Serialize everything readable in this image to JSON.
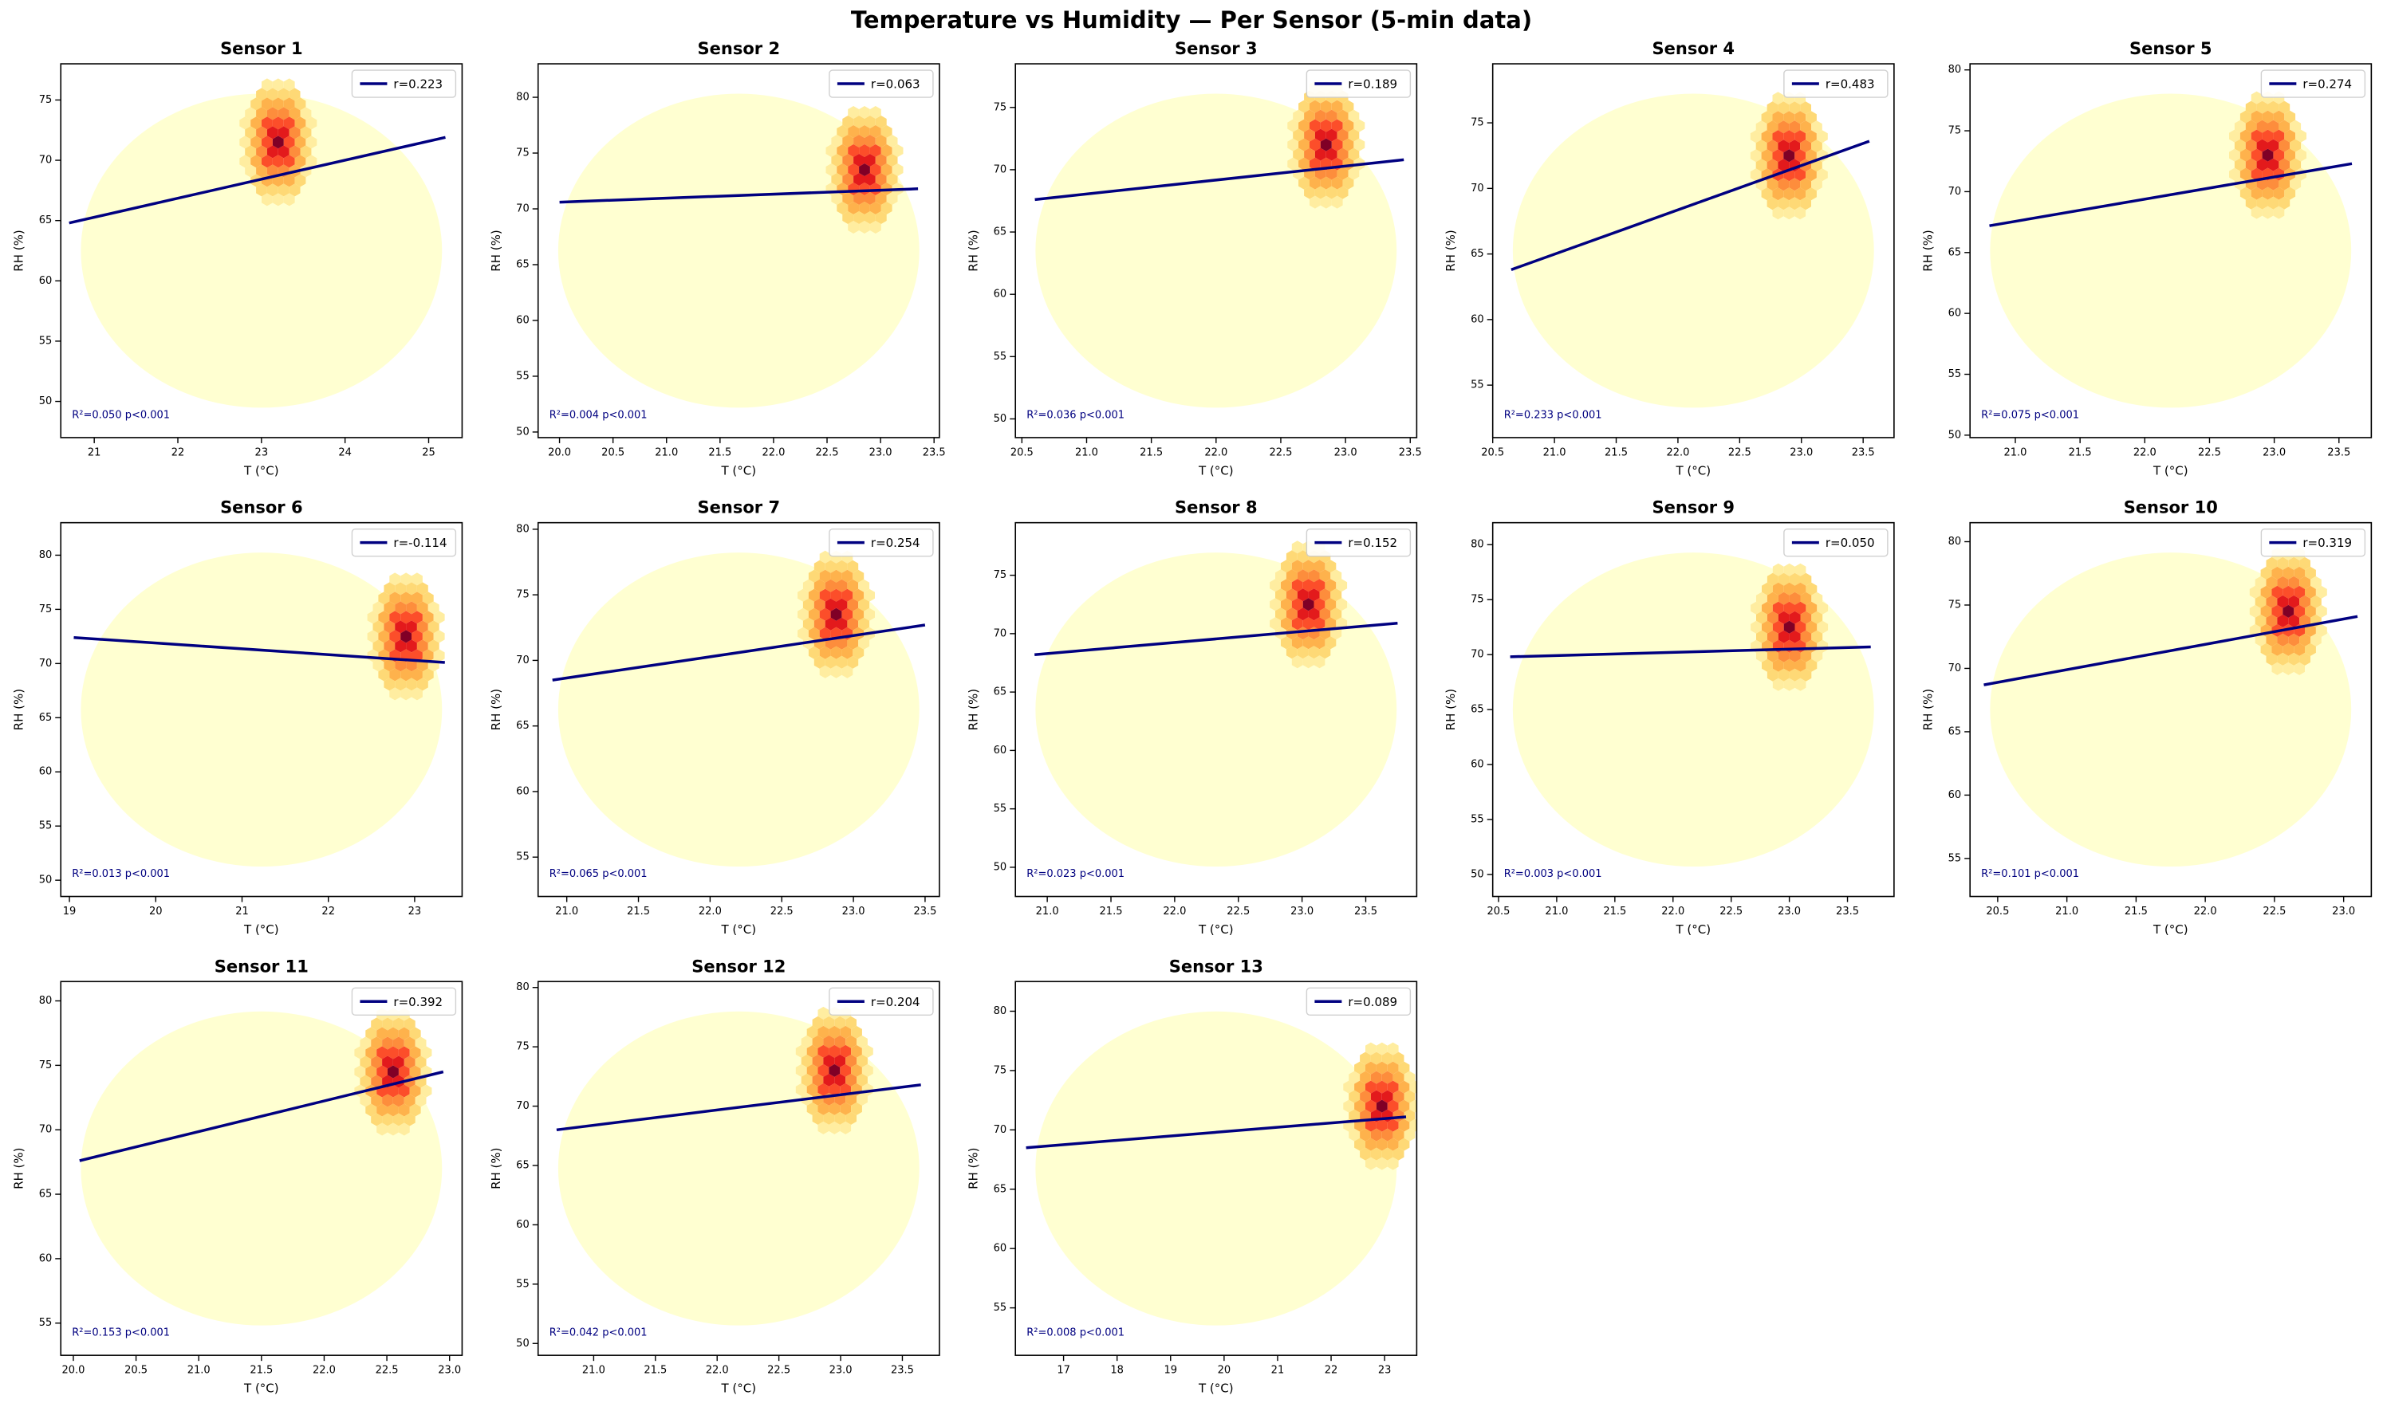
{
  "title": "Temperature vs Humidity — Per Sensor (5-min data)",
  "chart_data": [
    {
      "type": "hexbin",
      "title": "Sensor 1",
      "xlabel": "T (°C)",
      "ylabel": "RH (%)",
      "annotation": "R²=0.050  p<0.001",
      "xlim": [
        20.6,
        25.4
      ],
      "ylim": [
        47,
        78
      ],
      "xticks": [
        21,
        22,
        23,
        24,
        25
      ],
      "yticks": [
        50,
        55,
        60,
        65,
        70,
        75
      ],
      "fit": {
        "name": "r=0.223",
        "color": "#000080",
        "x": [
          20.7,
          25.2
        ],
        "y": [
          64.8,
          71.9
        ]
      },
      "peak": {
        "x": 23.2,
        "y": 71.5
      }
    },
    {
      "type": "hexbin",
      "title": "Sensor 2",
      "xlabel": "T (°C)",
      "ylabel": "RH (%)",
      "annotation": "R²=0.004  p<0.001",
      "xlim": [
        19.8,
        23.55
      ],
      "ylim": [
        49.5,
        83
      ],
      "xticks": [
        {
          "value": 20,
          "label": "20.0"
        },
        20.5,
        {
          "value": 21,
          "label": "21.0"
        },
        21.5,
        {
          "value": 22,
          "label": "22.0"
        },
        22.5,
        {
          "value": 23,
          "label": "23.0"
        },
        23.5
      ],
      "yticks": [
        50,
        55,
        60,
        65,
        70,
        75,
        80
      ],
      "fit": {
        "name": "r=0.063",
        "color": "#000080",
        "x": [
          20.0,
          23.35
        ],
        "y": [
          70.6,
          71.8
        ]
      },
      "peak": {
        "x": 22.85,
        "y": 73.5
      }
    },
    {
      "type": "hexbin",
      "title": "Sensor 3",
      "xlabel": "T (°C)",
      "ylabel": "RH (%)",
      "annotation": "R²=0.036  p<0.001",
      "xlim": [
        20.45,
        23.55
      ],
      "ylim": [
        48.5,
        78.5
      ],
      "xticks": [
        20.5,
        {
          "value": 21,
          "label": "21.0"
        },
        21.5,
        {
          "value": 22,
          "label": "22.0"
        },
        22.5,
        {
          "value": 23,
          "label": "23.0"
        },
        23.5
      ],
      "yticks": [
        50,
        55,
        60,
        65,
        70,
        75
      ],
      "fit": {
        "name": "r=0.189",
        "color": "#000080",
        "x": [
          20.6,
          23.45
        ],
        "y": [
          67.6,
          70.8
        ]
      },
      "peak": {
        "x": 22.85,
        "y": 72
      }
    },
    {
      "type": "hexbin",
      "title": "Sensor 4",
      "xlabel": "T (°C)",
      "ylabel": "RH (%)",
      "annotation": "R²=0.233  p<0.001",
      "xlim": [
        20.5,
        23.75
      ],
      "ylim": [
        51,
        79.5
      ],
      "xticks": [
        20.5,
        {
          "value": 21,
          "label": "21.0"
        },
        21.5,
        {
          "value": 22,
          "label": "22.0"
        },
        22.5,
        {
          "value": 23,
          "label": "23.0"
        },
        23.5
      ],
      "yticks": [
        55,
        60,
        65,
        70,
        75
      ],
      "fit": {
        "name": "r=0.483",
        "color": "#000080",
        "x": [
          20.65,
          23.55
        ],
        "y": [
          63.8,
          73.6
        ]
      },
      "peak": {
        "x": 22.9,
        "y": 72.5
      }
    },
    {
      "type": "hexbin",
      "title": "Sensor 5",
      "xlabel": "T (°C)",
      "ylabel": "RH (%)",
      "annotation": "R²=0.075  p<0.001",
      "xlim": [
        20.65,
        23.75
      ],
      "ylim": [
        49.8,
        80.5
      ],
      "xticks": [
        {
          "value": 21,
          "label": "21.0"
        },
        21.5,
        {
          "value": 22,
          "label": "22.0"
        },
        22.5,
        {
          "value": 23,
          "label": "23.0"
        },
        23.5
      ],
      "yticks": [
        50,
        55,
        60,
        65,
        70,
        75,
        80
      ],
      "fit": {
        "name": "r=0.274",
        "color": "#000080",
        "x": [
          20.8,
          23.6
        ],
        "y": [
          67.2,
          72.3
        ]
      },
      "peak": {
        "x": 22.95,
        "y": 73
      }
    },
    {
      "type": "hexbin",
      "title": "Sensor 6",
      "xlabel": "T (°C)",
      "ylabel": "RH (%)",
      "annotation": "R²=0.013  p<0.001",
      "xlim": [
        18.9,
        23.55
      ],
      "ylim": [
        48.5,
        83
      ],
      "xticks": [
        19,
        20,
        21,
        22,
        23
      ],
      "yticks": [
        50,
        55,
        60,
        65,
        70,
        75,
        80
      ],
      "fit": {
        "name": "r=-0.114",
        "color": "#000080",
        "x": [
          19.05,
          23.35
        ],
        "y": [
          72.4,
          70.1
        ]
      },
      "peak": {
        "x": 22.9,
        "y": 72.5
      }
    },
    {
      "type": "hexbin",
      "title": "Sensor 7",
      "xlabel": "T (°C)",
      "ylabel": "RH (%)",
      "annotation": "R²=0.065  p<0.001",
      "xlim": [
        20.8,
        23.6
      ],
      "ylim": [
        52,
        80.5
      ],
      "xticks": [
        {
          "value": 21,
          "label": "21.0"
        },
        21.5,
        {
          "value": 22,
          "label": "22.0"
        },
        22.5,
        {
          "value": 23,
          "label": "23.0"
        },
        23.5
      ],
      "yticks": [
        55,
        60,
        65,
        70,
        75,
        80
      ],
      "fit": {
        "name": "r=0.254",
        "color": "#000080",
        "x": [
          20.9,
          23.5
        ],
        "y": [
          68.5,
          72.7
        ]
      },
      "peak": {
        "x": 22.88,
        "y": 73.5
      }
    },
    {
      "type": "hexbin",
      "title": "Sensor 8",
      "xlabel": "T (°C)",
      "ylabel": "RH (%)",
      "annotation": "R²=0.023  p<0.001",
      "xlim": [
        20.75,
        23.9
      ],
      "ylim": [
        47.5,
        79.5
      ],
      "xticks": [
        {
          "value": 21,
          "label": "21.0"
        },
        21.5,
        {
          "value": 22,
          "label": "22.0"
        },
        22.5,
        {
          "value": 23,
          "label": "23.0"
        },
        23.5
      ],
      "yticks": [
        50,
        55,
        60,
        65,
        70,
        75
      ],
      "fit": {
        "name": "r=0.152",
        "color": "#000080",
        "x": [
          20.9,
          23.75
        ],
        "y": [
          68.2,
          70.9
        ]
      },
      "peak": {
        "x": 23.05,
        "y": 72.5
      }
    },
    {
      "type": "hexbin",
      "title": "Sensor 9",
      "xlabel": "T (°C)",
      "ylabel": "RH (%)",
      "annotation": "R²=0.003  p<0.001",
      "xlim": [
        20.45,
        23.9
      ],
      "ylim": [
        48,
        82
      ],
      "xticks": [
        20.5,
        {
          "value": 21,
          "label": "21.0"
        },
        21.5,
        {
          "value": 22,
          "label": "22.0"
        },
        22.5,
        {
          "value": 23,
          "label": "23.0"
        },
        23.5
      ],
      "yticks": [
        50,
        55,
        60,
        65,
        70,
        75,
        80
      ],
      "fit": {
        "name": "r=0.050",
        "color": "#000080",
        "x": [
          20.6,
          23.7
        ],
        "y": [
          69.8,
          70.7
        ]
      },
      "peak": {
        "x": 23.0,
        "y": 72.5
      }
    },
    {
      "type": "hexbin",
      "title": "Sensor 10",
      "xlabel": "T (°C)",
      "ylabel": "RH (%)",
      "annotation": "R²=0.101  p<0.001",
      "xlim": [
        20.3,
        23.2
      ],
      "ylim": [
        52,
        81.5
      ],
      "xticks": [
        20.5,
        {
          "value": 21,
          "label": "21.0"
        },
        21.5,
        {
          "value": 22,
          "label": "22.0"
        },
        22.5,
        {
          "value": 23,
          "label": "23.0"
        }
      ],
      "yticks": [
        55,
        60,
        65,
        70,
        75,
        80
      ],
      "fit": {
        "name": "r=0.319",
        "color": "#000080",
        "x": [
          20.4,
          23.1
        ],
        "y": [
          68.7,
          74.1
        ]
      },
      "peak": {
        "x": 22.6,
        "y": 74.5
      }
    },
    {
      "type": "hexbin",
      "title": "Sensor 11",
      "xlabel": "T (°C)",
      "ylabel": "RH (%)",
      "annotation": "R²=0.153  p<0.001",
      "xlim": [
        19.9,
        23.1
      ],
      "ylim": [
        52.5,
        81.5
      ],
      "xticks": [
        {
          "value": 20,
          "label": "20.0"
        },
        20.5,
        {
          "value": 21,
          "label": "21.0"
        },
        21.5,
        {
          "value": 22,
          "label": "22.0"
        },
        22.5,
        {
          "value": 23,
          "label": "23.0"
        }
      ],
      "yticks": [
        55,
        60,
        65,
        70,
        75,
        80
      ],
      "fit": {
        "name": "r=0.392",
        "color": "#000080",
        "x": [
          20.05,
          22.95
        ],
        "y": [
          67.6,
          74.5
        ]
      },
      "peak": {
        "x": 22.55,
        "y": 74.5
      }
    },
    {
      "type": "hexbin",
      "title": "Sensor 12",
      "xlabel": "T (°C)",
      "ylabel": "RH (%)",
      "annotation": "R²=0.042  p<0.001",
      "xlim": [
        20.55,
        23.8
      ],
      "ylim": [
        49,
        80.5
      ],
      "xticks": [
        {
          "value": 21,
          "label": "21.0"
        },
        21.5,
        {
          "value": 22,
          "label": "22.0"
        },
        22.5,
        {
          "value": 23,
          "label": "23.0"
        },
        23.5
      ],
      "yticks": [
        50,
        55,
        60,
        65,
        70,
        75,
        80
      ],
      "fit": {
        "name": "r=0.204",
        "color": "#000080",
        "x": [
          20.7,
          23.65
        ],
        "y": [
          68.0,
          71.8
        ]
      },
      "peak": {
        "x": 22.95,
        "y": 73
      }
    },
    {
      "type": "hexbin",
      "title": "Sensor 13",
      "xlabel": "T (°C)",
      "ylabel": "RH (%)",
      "annotation": "R²=0.008  p<0.001",
      "xlim": [
        16.1,
        23.6
      ],
      "ylim": [
        51,
        82.5
      ],
      "xticks": [
        17,
        18,
        19,
        20,
        21,
        22,
        23
      ],
      "yticks": [
        55,
        60,
        65,
        70,
        75,
        80
      ],
      "fit": {
        "name": "r=0.089",
        "color": "#000080",
        "x": [
          16.3,
          23.4
        ],
        "y": [
          68.5,
          71.1
        ]
      },
      "peak": {
        "x": 22.95,
        "y": 72
      }
    }
  ]
}
